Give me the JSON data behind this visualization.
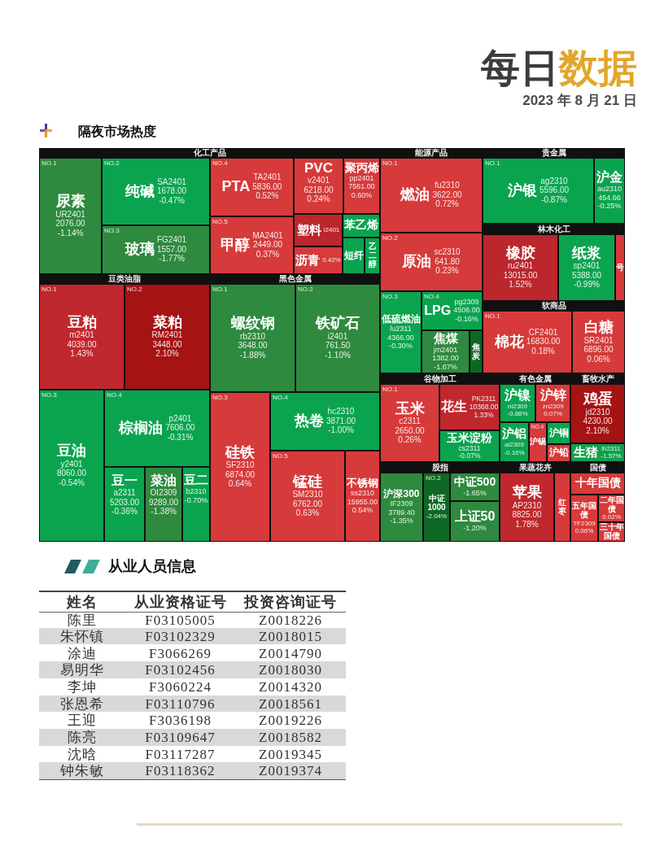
{
  "chart_data": [
    {
      "type": "other",
      "title": "化工产品",
      "annotations": [
        "每日数据",
        "2023 年 8 月 21 日",
        "隔夜市场热度"
      ],
      "categories": [
        "尿素",
        "纯碱",
        "玻璃",
        "PTA",
        "甲醇",
        "PVC",
        "聚丙烯",
        "塑料",
        "苯乙烯",
        "沥青",
        "短纤",
        "乙二醇"
      ],
      "cell_labels": [
        [
          "NO.1",
          "UR2401"
        ],
        [
          "NO.2",
          "SA2401"
        ],
        [
          "NO.3",
          "FG2401"
        ],
        [
          "NO.4",
          "TA2401"
        ],
        [
          "NO.5",
          "MA2401"
        ],
        [
          null,
          "v2401"
        ],
        [
          null,
          "pp2401"
        ],
        [
          null,
          "l2401"
        ],
        [
          null,
          null
        ],
        [
          null,
          null
        ],
        [
          null,
          null
        ],
        [
          null,
          null
        ]
      ],
      "series": [
        {
          "values": [
            -1.14,
            -0.47,
            -1.77,
            0.52,
            0.37,
            0.24,
            0.6,
            null,
            null,
            0.42,
            null,
            null
          ],
          "value_labels": [
            "-1.14%",
            "-0.47%",
            "-1.77%",
            "0.52%",
            "0.37%",
            "0.24%",
            "0.60%",
            null,
            null,
            "0.42%",
            null,
            null
          ],
          "colors": [
            "#2e8a3e",
            "#0aa44f",
            "#2e8a3e",
            "#d63a3a",
            "#d63a3a",
            "#d63a3a",
            "#d63a3a",
            "#bb272c",
            "#0aa44f",
            "#d63a3a",
            "#0aa44f",
            "#0aa44f"
          ]
        },
        {
          "values": [
            2076,
            1678,
            1557,
            5836,
            2449,
            6218,
            7561,
            null,
            null,
            null,
            null,
            null
          ],
          "value_labels": [
            "2076.00",
            "1678.00",
            "1557.00",
            "5836.00",
            "2449.00",
            "6218.00",
            "7561.00",
            null,
            null,
            null,
            null,
            null
          ]
        }
      ]
    },
    {
      "type": "other",
      "title": "能源产品",
      "categories": [
        "燃油",
        "原油",
        "低硫燃油",
        "LPG",
        "焦煤",
        "焦炭"
      ],
      "cell_labels": [
        [
          "NO.1",
          "fu2310"
        ],
        [
          "NO.2",
          "sc2310"
        ],
        [
          "NO.3",
          "lu2311"
        ],
        [
          "NO.4",
          "pg2309"
        ],
        [
          null,
          "jm2401"
        ],
        [
          null,
          null
        ]
      ],
      "series": [
        {
          "values": [
            0.72,
            0.23,
            -0.3,
            -0.16,
            -1.67,
            null
          ],
          "value_labels": [
            "0.72%",
            "0.23%",
            "-0.30%",
            "-0.16%",
            "-1.67%",
            null
          ],
          "colors": [
            "#d63a3a",
            "#d63a3a",
            "#0aa44f",
            "#0aa44f",
            "#2e8a3e",
            "#0e6824"
          ]
        },
        {
          "values": [
            3622,
            641.8,
            4366,
            4506,
            1382,
            null
          ],
          "value_labels": [
            "3622.00",
            "641.80",
            "4366.00",
            "4506.00",
            "1382.00",
            null
          ]
        }
      ]
    },
    {
      "type": "other",
      "title": "贵金属",
      "categories": [
        "沪银",
        "沪金"
      ],
      "cell_labels": [
        [
          "NO.1",
          "ag2310"
        ],
        [
          null,
          "au2310"
        ]
      ],
      "series": [
        {
          "values": [
            -0.87,
            -0.25
          ],
          "value_labels": [
            "-0.87%",
            "-0.25%"
          ],
          "colors": [
            "#0aa44f",
            "#0aa44f"
          ]
        },
        {
          "values": [
            5596,
            454.66
          ],
          "value_labels": [
            "5596.00",
            "454.66"
          ]
        }
      ]
    },
    {
      "type": "other",
      "title": "林木化工",
      "categories": [
        "橡胶",
        "纸浆",
        "号"
      ],
      "cell_labels": [
        [
          null,
          "ru2401"
        ],
        [
          null,
          "sp2401"
        ],
        [
          null,
          null
        ]
      ],
      "series": [
        {
          "values": [
            1.52,
            -0.99,
            null
          ],
          "value_labels": [
            "1.52%",
            "-0.99%",
            null
          ],
          "colors": [
            "#bb272c",
            "#0aa44f",
            "#d63a3a"
          ]
        },
        {
          "values": [
            13015,
            5388,
            null
          ],
          "value_labels": [
            "13015.00",
            "5388.00",
            null
          ]
        }
      ]
    },
    {
      "type": "other",
      "title": "豆类油脂",
      "categories": [
        "豆粕",
        "菜粕",
        "豆油",
        "棕榈油",
        "豆一",
        "菜油",
        "豆二"
      ],
      "cell_labels": [
        [
          "NO.1",
          "m2401"
        ],
        [
          "NO.2",
          "RM2401"
        ],
        [
          "NO.3",
          "y2401"
        ],
        [
          "NO.4",
          "p2401"
        ],
        [
          null,
          "a2311"
        ],
        [
          null,
          "OI2309"
        ],
        [
          null,
          "b2310"
        ]
      ],
      "series": [
        {
          "values": [
            1.43,
            2.1,
            -0.54,
            -0.31,
            -0.36,
            -1.38,
            -0.7
          ],
          "value_labels": [
            "1.43%",
            "2.10%",
            "-0.54%",
            "-0.31%",
            "-0.36%",
            "-1.38%",
            "-0.70%"
          ],
          "colors": [
            "#c0282d",
            "#a61313",
            "#0aa44f",
            "#0aa44f",
            "#0aa44f",
            "#2e8a3e",
            "#0aa44f"
          ]
        },
        {
          "values": [
            4039,
            3448,
            8060,
            7606,
            5203,
            9289,
            null
          ],
          "value_labels": [
            "4039.00",
            "3448.00",
            "8060.00",
            "7606.00",
            "5203.00",
            "9289.00",
            null
          ]
        }
      ]
    },
    {
      "type": "other",
      "title": "黑色金属",
      "categories": [
        "螺纹钢",
        "铁矿石",
        "硅铁",
        "热卷",
        "锰硅",
        "不锈钢"
      ],
      "cell_labels": [
        [
          "NO.1",
          "rb2310"
        ],
        [
          "NO.2",
          "i2401"
        ],
        [
          "NO.3",
          "SF2310"
        ],
        [
          "NO.4",
          "hc2310"
        ],
        [
          "NO.5",
          "SM2310"
        ],
        [
          null,
          "ss2310"
        ]
      ],
      "series": [
        {
          "values": [
            -1.88,
            -1.1,
            0.64,
            -1.0,
            0.63,
            0.54
          ],
          "value_labels": [
            "-1.88%",
            "-1.10%",
            "0.64%",
            "-1.00%",
            "0.63%",
            "0.54%"
          ],
          "colors": [
            "#2e8a3e",
            "#2e8a3e",
            "#d63a3a",
            "#0aa44f",
            "#d63a3a",
            "#d63a3a"
          ]
        },
        {
          "values": [
            3648,
            761.5,
            6874,
            3871,
            6762,
            15955
          ],
          "value_labels": [
            "3648.00",
            "761.50",
            "6874.00",
            "3871.00",
            "6762.00",
            "15955.00"
          ]
        }
      ]
    },
    {
      "type": "other",
      "title": "软商品",
      "categories": [
        "棉花",
        "白糖"
      ],
      "cell_labels": [
        [
          "NO.1",
          "CF2401"
        ],
        [
          null,
          "SR2401"
        ]
      ],
      "series": [
        {
          "values": [
            0.18,
            0.06
          ],
          "value_labels": [
            "0.18%",
            "0.06%"
          ],
          "colors": [
            "#d63a3a",
            "#d63a3a"
          ]
        },
        {
          "values": [
            16830,
            6896
          ],
          "value_labels": [
            "16830.00",
            "6896.00"
          ]
        }
      ]
    },
    {
      "type": "other",
      "title": "谷物加工",
      "categories": [
        "玉米",
        "花生",
        "玉米淀粉"
      ],
      "cell_labels": [
        [
          "NO.1",
          "c2311"
        ],
        [
          null,
          "PK2311"
        ],
        [
          null,
          "cs2311"
        ]
      ],
      "series": [
        {
          "values": [
            0.26,
            1.33,
            -0.07
          ],
          "value_labels": [
            "0.26%",
            "1.33%",
            "-0.07%"
          ],
          "colors": [
            "#d63a3a",
            "#c0282d",
            "#0aa44f"
          ]
        },
        {
          "values": [
            2650,
            10368,
            null
          ],
          "value_labels": [
            "2650.00",
            "10368.00",
            null
          ]
        }
      ]
    },
    {
      "type": "other",
      "title": "有色金属",
      "categories": [
        "沪镍",
        "沪锌",
        "沪铝",
        "沪锡",
        "沪铜",
        "沪铅"
      ],
      "cell_labels": [
        [
          null,
          "ni2309"
        ],
        [
          null,
          "zn2309"
        ],
        [
          null,
          "al2309"
        ],
        [
          "NO.4",
          null
        ],
        [
          null,
          null
        ],
        [
          null,
          null
        ]
      ],
      "series": [
        {
          "values": [
            -0.86,
            0.07,
            -0.16,
            null,
            null,
            null
          ],
          "value_labels": [
            "-0.86%",
            "0.07%",
            "-0.16%",
            null,
            null,
            null
          ],
          "colors": [
            "#0aa44f",
            "#d63a3a",
            "#0aa44f",
            "#d63a3a",
            "#0aa44f",
            "#d63a3a"
          ]
        }
      ]
    },
    {
      "type": "other",
      "title": "畜牧水产",
      "categories": [
        "鸡蛋",
        "生猪"
      ],
      "cell_labels": [
        [
          null,
          "jd2310"
        ],
        [
          null,
          "lh2311"
        ]
      ],
      "series": [
        {
          "values": [
            2.1,
            -1.57
          ],
          "value_labels": [
            "2.10%",
            "-1.57%"
          ],
          "colors": [
            "#a61313",
            "#12a04d"
          ]
        },
        {
          "values": [
            4230,
            null
          ],
          "value_labels": [
            "4230.00",
            null
          ]
        }
      ]
    },
    {
      "type": "other",
      "title": "股指",
      "categories": [
        "沪深300",
        "中证1000",
        "中证500",
        "上证50"
      ],
      "cell_labels": [
        [
          null,
          "IF2309"
        ],
        [
          "NO.2",
          null
        ],
        [
          null,
          null
        ],
        [
          null,
          null
        ]
      ],
      "series": [
        {
          "values": [
            -1.35,
            -2.04,
            -1.65,
            -1.2
          ],
          "value_labels": [
            "-1.35%",
            "-2.04%",
            "-1.65%",
            "-1.20%"
          ],
          "colors": [
            "#2e8a3e",
            "#0e6824",
            "#2e8a3e",
            "#2e8a3e"
          ]
        },
        {
          "values": [
            3789.4,
            null,
            null,
            null
          ],
          "value_labels": [
            "3789.40",
            null,
            null,
            null
          ]
        }
      ]
    },
    {
      "type": "other",
      "title": "果蔬花卉",
      "categories": [
        "苹果",
        "红枣"
      ],
      "cell_labels": [
        [
          null,
          "AP2310"
        ],
        [
          null,
          null
        ]
      ],
      "series": [
        {
          "values": [
            1.78,
            null
          ],
          "value_labels": [
            "1.78%",
            null
          ],
          "colors": [
            "#c0282d",
            "#d63a3a"
          ]
        },
        {
          "values": [
            8825,
            null
          ],
          "value_labels": [
            "8825.00",
            null
          ]
        }
      ]
    },
    {
      "type": "other",
      "title": "国债",
      "categories": [
        "十年国债",
        "五年国债",
        "二年国债",
        "三十年国债"
      ],
      "cell_labels": [
        [
          null,
          null
        ],
        [
          null,
          "TF2309"
        ],
        [
          null,
          null
        ],
        [
          null,
          null
        ]
      ],
      "series": [
        {
          "values": [
            null,
            0.06,
            0.02,
            null
          ],
          "value_labels": [
            null,
            "0.06%",
            "0.02%",
            null
          ],
          "colors": [
            "#d63a3a",
            "#d63a3a",
            "#d63a3a",
            "#d63a3a"
          ]
        }
      ]
    },
    {
      "type": "other",
      "title": "从业人员信息",
      "categories": [
        "姓名",
        "从业资格证号",
        "投资咨询证号"
      ],
      "cell_labels": [
        [
          "陈里",
          "F03105005",
          "Z0018226"
        ],
        [
          "朱怀镇",
          "F03102329",
          "Z0018015"
        ],
        [
          "涂迪",
          "F3066269",
          "Z0014790"
        ],
        [
          "易明华",
          "F03102456",
          "Z0018030"
        ],
        [
          "李坤",
          "F3060224",
          "Z0014320"
        ],
        [
          "张恩希",
          "F03110796",
          "Z0018561"
        ],
        [
          "王迎",
          "F3036198",
          "Z0019226"
        ],
        [
          "陈亮",
          "F03109647",
          "Z0018582"
        ],
        [
          "沈晗",
          "F03117287",
          "Z0019345"
        ],
        [
          "钟朱敏",
          "F03118362",
          "Z0019374"
        ]
      ]
    }
  ]
}
